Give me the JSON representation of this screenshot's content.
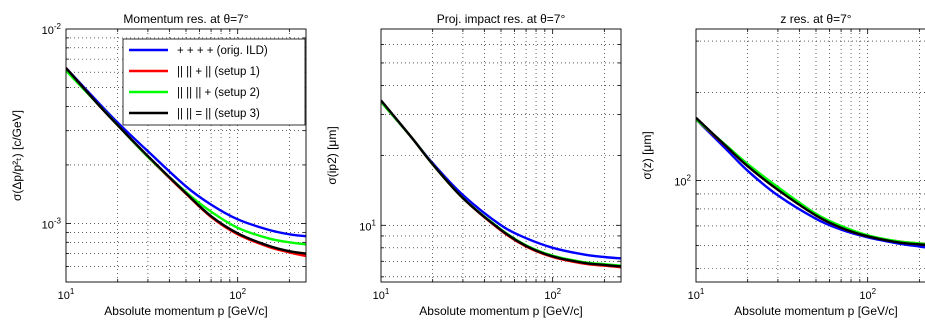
{
  "colors": {
    "setup_0": "#0000ff",
    "setup_1": "#ff0000",
    "setup_2": "#00ff00",
    "setup_3": "#000000",
    "grid": "#000000",
    "background": "#ffffff"
  },
  "legend": {
    "entries": [
      "+ + + + (orig. ILD)",
      "|| || + ||   (setup 1)",
      "|| || || +   (setup 2)",
      "|| || = ||   (setup 3)"
    ]
  },
  "chart_data": [
    {
      "type": "line",
      "title": "Momentum res. at θ=7°",
      "xlabel": "Absolute momentum p [GeV/c]",
      "ylabel": "σ(Δp/p²ₜ) [c/GeV]",
      "x_scale": "log",
      "y_scale": "log",
      "xlim": [
        10,
        250
      ],
      "ylim": [
        0.0005,
        0.01
      ],
      "grid": true,
      "legend_position": "top-right",
      "x_ticks": [
        {
          "value": 10,
          "base": "10",
          "exp": "1"
        },
        {
          "value": 100,
          "base": "10",
          "exp": "2"
        }
      ],
      "y_ticks": [
        {
          "value": 0.001,
          "base": "10",
          "exp": "-3"
        },
        {
          "value": 0.01,
          "base": "10",
          "exp": "-2"
        }
      ],
      "x": [
        10,
        15,
        20,
        30,
        50,
        70,
        100,
        150,
        200,
        250
      ],
      "series": [
        {
          "name": "+ + + + (orig. ILD)",
          "color_key": "setup_0",
          "values": [
            0.0063,
            0.0043,
            0.0033,
            0.00235,
            0.00155,
            0.00125,
            0.00105,
            0.00093,
            0.00088,
            0.00086
          ]
        },
        {
          "name": "|| || + ||   (setup 1)",
          "color_key": "setup_1",
          "values": [
            0.0063,
            0.0042,
            0.0032,
            0.0022,
            0.00142,
            0.00108,
            0.00088,
            0.00076,
            0.00071,
            0.00068
          ]
        },
        {
          "name": "|| || || +   (setup 2)",
          "color_key": "setup_2",
          "values": [
            0.0061,
            0.0042,
            0.0032,
            0.0022,
            0.00145,
            0.00115,
            0.00095,
            0.00084,
            0.0008,
            0.00078
          ]
        },
        {
          "name": "|| || = ||   (setup 3)",
          "color_key": "setup_3",
          "values": [
            0.0063,
            0.0042,
            0.0032,
            0.00222,
            0.00143,
            0.00109,
            0.00089,
            0.00077,
            0.00072,
            0.0007
          ]
        }
      ]
    },
    {
      "type": "line",
      "title": "Proj. impact res. at θ=7°",
      "xlabel": "Absolute momentum p [GeV/c]",
      "ylabel": "σ(ip2) [μm]",
      "x_scale": "log",
      "y_scale": "log",
      "xlim": [
        10,
        250
      ],
      "ylim": [
        5.7,
        70
      ],
      "grid": true,
      "x_ticks": [
        {
          "value": 10,
          "base": "10",
          "exp": "1"
        },
        {
          "value": 100,
          "base": "10",
          "exp": "2"
        }
      ],
      "y_ticks": [
        {
          "value": 10,
          "base": "10",
          "exp": "1"
        }
      ],
      "x": [
        10,
        15,
        20,
        30,
        50,
        70,
        100,
        150,
        200,
        250
      ],
      "series": [
        {
          "name": "+ + + + (orig. ILD)",
          "color_key": "setup_0",
          "values": [
            34,
            24,
            18.5,
            13.5,
            10.0,
            8.8,
            8.0,
            7.5,
            7.3,
            7.2
          ]
        },
        {
          "name": "|| || + ||   (setup 1)",
          "color_key": "setup_1",
          "values": [
            34,
            24,
            18.3,
            13.1,
            9.5,
            8.1,
            7.3,
            6.85,
            6.7,
            6.6
          ]
        },
        {
          "name": "|| || || +   (setup 2)",
          "color_key": "setup_2",
          "values": [
            34,
            24,
            18.3,
            13.1,
            9.6,
            8.2,
            7.4,
            6.95,
            6.8,
            6.7
          ]
        },
        {
          "name": "|| || = ||   (setup 3)",
          "color_key": "setup_3",
          "values": [
            34.5,
            24,
            18.3,
            13.1,
            9.55,
            8.15,
            7.35,
            6.9,
            6.75,
            6.65
          ]
        }
      ]
    },
    {
      "type": "line",
      "title": "z res. at θ=7°",
      "xlabel": "Absolute momentum p [GeV/c]",
      "ylabel": "σ(z) [μm]",
      "x_scale": "log",
      "y_scale": "log",
      "xlim": [
        10,
        250
      ],
      "ylim": [
        45,
        330
      ],
      "grid": true,
      "x_ticks": [
        {
          "value": 10,
          "base": "10",
          "exp": "1"
        },
        {
          "value": 100,
          "base": "10",
          "exp": "2"
        }
      ],
      "y_ticks": [
        {
          "value": 100,
          "base": "10",
          "exp": "2"
        }
      ],
      "x": [
        10,
        15,
        20,
        30,
        50,
        70,
        100,
        150,
        200,
        250
      ],
      "series": [
        {
          "name": "+ + + + (orig. ILD)",
          "color_key": "setup_0",
          "values": [
            162,
            128,
            108,
            89,
            74,
            68,
            64,
            61,
            59.5,
            58.5
          ]
        },
        {
          "name": "|| || + ||   (setup 1)",
          "color_key": "setup_1",
          "values": [
            162,
            131,
            112,
            93,
            76,
            69,
            64.5,
            62,
            61,
            60.5
          ]
        },
        {
          "name": "|| || || +   (setup 2)",
          "color_key": "setup_2",
          "values": [
            162,
            132,
            114,
            95,
            77,
            70,
            65,
            62,
            61,
            60
          ]
        },
        {
          "name": "|| || = ||   (setup 3)",
          "color_key": "setup_3",
          "values": [
            164,
            131,
            112,
            93,
            76,
            69,
            64.5,
            61.5,
            60.5,
            60
          ]
        }
      ]
    }
  ]
}
